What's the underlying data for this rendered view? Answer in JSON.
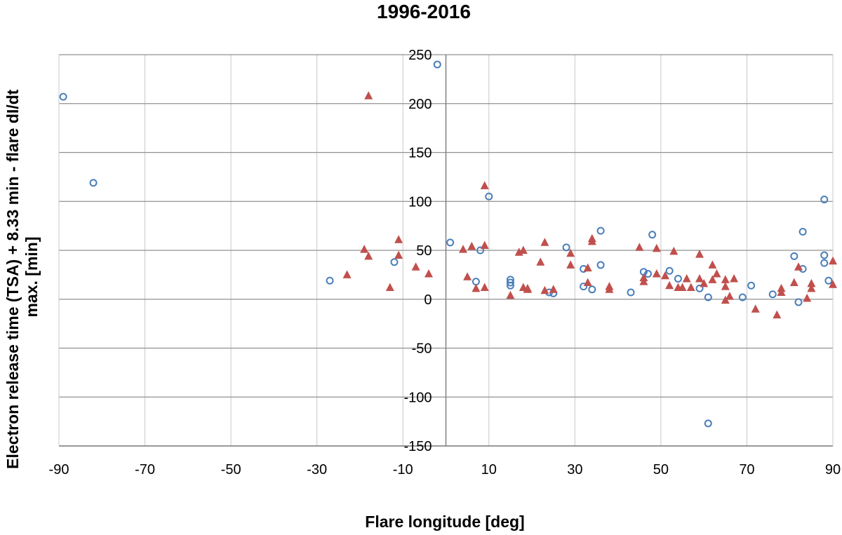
{
  "chart_data": {
    "type": "scatter",
    "title": "1996-2016",
    "xlabel": "Flare longitude [deg]",
    "ylabel": [
      "Electron release time (TSA) + 8.33 min - flare dI/dt",
      "max. [min]"
    ],
    "xlim": [
      -90,
      90
    ],
    "ylim": [
      -150,
      250
    ],
    "xticks": [
      -90,
      -70,
      -50,
      -30,
      -10,
      10,
      30,
      50,
      70,
      90
    ],
    "yticks": [
      250,
      200,
      150,
      100,
      50,
      0,
      -50,
      -100,
      -150
    ],
    "grid": true,
    "legend": "none",
    "series": [
      {
        "marker": "open-circle",
        "color": "#4a7ebb",
        "points": [
          [
            -89,
            207
          ],
          [
            -82,
            119
          ],
          [
            -27,
            19
          ],
          [
            -12,
            38
          ],
          [
            -2,
            240
          ],
          [
            1,
            58
          ],
          [
            7,
            18
          ],
          [
            8,
            50
          ],
          [
            10,
            105
          ],
          [
            15,
            20
          ],
          [
            15,
            17
          ],
          [
            15,
            14
          ],
          [
            24,
            7
          ],
          [
            25,
            6
          ],
          [
            28,
            53
          ],
          [
            32,
            13
          ],
          [
            32,
            31
          ],
          [
            34,
            10
          ],
          [
            36,
            70
          ],
          [
            36,
            35
          ],
          [
            43,
            7
          ],
          [
            46,
            28
          ],
          [
            47,
            26
          ],
          [
            48,
            66
          ],
          [
            52,
            29
          ],
          [
            54,
            21
          ],
          [
            59,
            11
          ],
          [
            61,
            2
          ],
          [
            61,
            -127
          ],
          [
            69,
            2
          ],
          [
            71,
            14
          ],
          [
            76,
            5
          ],
          [
            81,
            44
          ],
          [
            82,
            -3
          ],
          [
            83,
            69
          ],
          [
            83,
            31
          ],
          [
            88,
            102
          ],
          [
            88,
            45
          ],
          [
            88,
            37
          ],
          [
            89,
            19
          ]
        ]
      },
      {
        "marker": "filled-triangle",
        "color": "#c0504d",
        "points": [
          [
            -23,
            25
          ],
          [
            -19,
            51
          ],
          [
            -18,
            44
          ],
          [
            -18,
            208
          ],
          [
            -13,
            12
          ],
          [
            -11,
            61
          ],
          [
            -11,
            45
          ],
          [
            -7,
            33
          ],
          [
            -4,
            26
          ],
          [
            4,
            51
          ],
          [
            5,
            23
          ],
          [
            6,
            54
          ],
          [
            7,
            11
          ],
          [
            9,
            55
          ],
          [
            9,
            12
          ],
          [
            9,
            116
          ],
          [
            15,
            4
          ],
          [
            17,
            48
          ],
          [
            18,
            50
          ],
          [
            18,
            12
          ],
          [
            19,
            10
          ],
          [
            19,
            11
          ],
          [
            22,
            38
          ],
          [
            23,
            58
          ],
          [
            23,
            9
          ],
          [
            25,
            10
          ],
          [
            29,
            47
          ],
          [
            29,
            35
          ],
          [
            33,
            32
          ],
          [
            33,
            17
          ],
          [
            34,
            62
          ],
          [
            34,
            59
          ],
          [
            38,
            13
          ],
          [
            38,
            10
          ],
          [
            45,
            53
          ],
          [
            46,
            22
          ],
          [
            46,
            18
          ],
          [
            49,
            52
          ],
          [
            49,
            26
          ],
          [
            51,
            24
          ],
          [
            52,
            14
          ],
          [
            53,
            49
          ],
          [
            54,
            12
          ],
          [
            55,
            12
          ],
          [
            56,
            21
          ],
          [
            57,
            12
          ],
          [
            59,
            46
          ],
          [
            59,
            21
          ],
          [
            60,
            16
          ],
          [
            62,
            35
          ],
          [
            62,
            20
          ],
          [
            63,
            26
          ],
          [
            65,
            20
          ],
          [
            65,
            13
          ],
          [
            65,
            -1
          ],
          [
            66,
            3
          ],
          [
            67,
            21
          ],
          [
            72,
            -10
          ],
          [
            77,
            -16
          ],
          [
            78,
            11
          ],
          [
            78,
            7
          ],
          [
            81,
            17
          ],
          [
            82,
            33
          ],
          [
            84,
            1
          ],
          [
            85,
            16
          ],
          [
            85,
            11
          ],
          [
            90,
            39
          ],
          [
            90,
            15
          ]
        ]
      }
    ]
  }
}
